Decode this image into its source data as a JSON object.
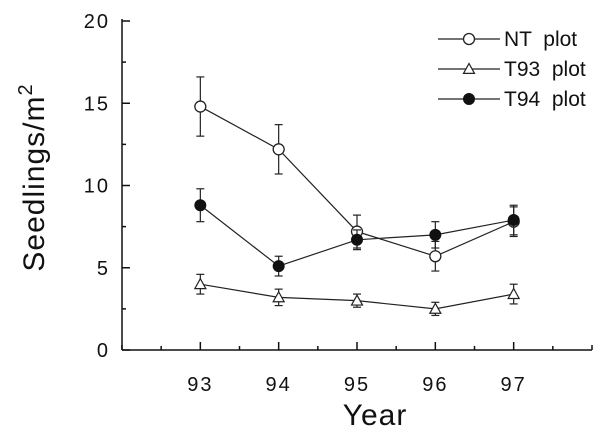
{
  "chart_data": {
    "type": "line",
    "title": "",
    "xlabel": "Year",
    "ylabel": "Seedlings/m",
    "ylabel_superscript": "2",
    "x": [
      "93",
      "94",
      "95",
      "96",
      "97"
    ],
    "xlim": [
      92,
      98
    ],
    "ylim": [
      0,
      20
    ],
    "yticks": [
      "0",
      "5",
      "10",
      "15",
      "20"
    ],
    "grid": false,
    "legend_position": "top-right",
    "series": [
      {
        "name": "NT  plot",
        "marker": "open-circle",
        "line_style": "solid",
        "values": [
          14.8,
          12.2,
          7.2,
          5.7,
          7.8
        ],
        "errors": [
          1.8,
          1.5,
          1.0,
          0.9,
          0.9
        ]
      },
      {
        "name": "T93  plot",
        "marker": "open-triangle",
        "line_style": "solid",
        "values": [
          4.0,
          3.2,
          3.0,
          2.5,
          3.4
        ],
        "errors": [
          0.6,
          0.5,
          0.4,
          0.4,
          0.6
        ]
      },
      {
        "name": "T94  plot",
        "marker": "filled-circle",
        "line_style": "solid",
        "values": [
          8.8,
          5.1,
          6.7,
          7.0,
          7.9
        ],
        "errors": [
          1.0,
          0.6,
          0.6,
          0.8,
          0.9
        ]
      }
    ]
  }
}
